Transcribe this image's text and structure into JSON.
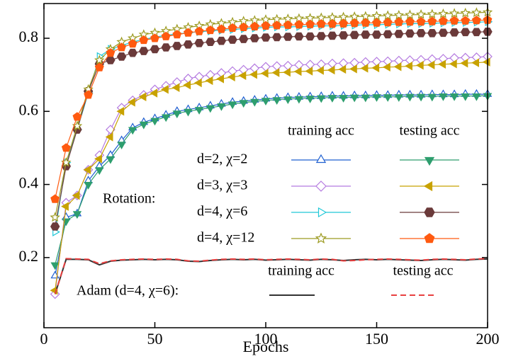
{
  "chart_data": {
    "type": "line",
    "x_label": "Epochs",
    "legend_title": "Rotation:",
    "xlim": [
      0,
      200
    ],
    "xticks": [
      0,
      50,
      100,
      150,
      200
    ],
    "ylim": [
      0.008,
      0.895
    ],
    "yticks": [
      0.2,
      0.4,
      0.6,
      0.8
    ],
    "x": [
      5,
      10,
      15,
      20,
      25,
      30,
      35,
      40,
      45,
      50,
      55,
      60,
      65,
      70,
      75,
      80,
      85,
      90,
      95,
      100,
      105,
      110,
      115,
      120,
      125,
      130,
      135,
      140,
      145,
      150,
      155,
      160,
      165,
      170,
      175,
      180,
      185,
      190,
      195,
      200
    ],
    "series": [
      {
        "name": "d=2, χ=2",
        "kind": "training acc",
        "color": "#1f5fd0",
        "marker": "triangle-up",
        "filled": false,
        "values": [
          0.15,
          0.31,
          0.32,
          0.41,
          0.45,
          0.48,
          0.52,
          0.555,
          0.57,
          0.58,
          0.59,
          0.6,
          0.605,
          0.61,
          0.615,
          0.62,
          0.625,
          0.628,
          0.631,
          0.634,
          0.636,
          0.638,
          0.639,
          0.64,
          0.641,
          0.642,
          0.642,
          0.643,
          0.643,
          0.644,
          0.644,
          0.645,
          0.645,
          0.645,
          0.646,
          0.646,
          0.646,
          0.647,
          0.647,
          0.647
        ]
      },
      {
        "name": "d=2, χ=2",
        "kind": "testing acc",
        "color": "#2e9e6e",
        "marker": "triangle-down",
        "filled": true,
        "values": [
          0.18,
          0.3,
          0.32,
          0.4,
          0.44,
          0.47,
          0.51,
          0.55,
          0.565,
          0.575,
          0.585,
          0.595,
          0.6,
          0.605,
          0.61,
          0.615,
          0.62,
          0.624,
          0.627,
          0.63,
          0.632,
          0.634,
          0.635,
          0.636,
          0.637,
          0.638,
          0.638,
          0.639,
          0.639,
          0.64,
          0.64,
          0.64,
          0.641,
          0.641,
          0.641,
          0.642,
          0.642,
          0.642,
          0.642,
          0.643
        ]
      },
      {
        "name": "d=3, χ=3",
        "kind": "training acc",
        "color": "#b57be0",
        "marker": "diamond",
        "filled": false,
        "values": [
          0.1,
          0.35,
          0.37,
          0.44,
          0.48,
          0.55,
          0.61,
          0.63,
          0.645,
          0.66,
          0.67,
          0.68,
          0.69,
          0.695,
          0.7,
          0.705,
          0.71,
          0.714,
          0.718,
          0.722,
          0.724,
          0.725,
          0.727,
          0.728,
          0.729,
          0.731,
          0.732,
          0.733,
          0.735,
          0.736,
          0.737,
          0.739,
          0.74,
          0.741,
          0.743,
          0.744,
          0.746,
          0.747,
          0.748,
          0.75
        ]
      },
      {
        "name": "d=3, χ=3",
        "kind": "testing acc",
        "color": "#c8a200",
        "marker": "triangle-left",
        "filled": true,
        "values": [
          0.11,
          0.34,
          0.37,
          0.44,
          0.47,
          0.53,
          0.6,
          0.625,
          0.64,
          0.65,
          0.66,
          0.665,
          0.672,
          0.678,
          0.684,
          0.689,
          0.694,
          0.698,
          0.701,
          0.704,
          0.706,
          0.707,
          0.709,
          0.71,
          0.712,
          0.713,
          0.715,
          0.716,
          0.718,
          0.719,
          0.721,
          0.722,
          0.724,
          0.726,
          0.727,
          0.729,
          0.73,
          0.732,
          0.733,
          0.735
        ]
      },
      {
        "name": "d=4, χ=6",
        "kind": "training acc",
        "color": "#22c8d8",
        "marker": "triangle-right",
        "filled": false,
        "values": [
          0.27,
          0.46,
          0.55,
          0.65,
          0.75,
          0.77,
          0.78,
          0.79,
          0.797,
          0.803,
          0.808,
          0.812,
          0.815,
          0.818,
          0.82,
          0.822,
          0.824,
          0.826,
          0.828,
          0.83,
          0.831,
          0.831,
          0.832,
          0.833,
          0.834,
          0.834,
          0.835,
          0.836,
          0.837,
          0.837,
          0.838,
          0.839,
          0.84,
          0.84,
          0.841,
          0.842,
          0.843,
          0.843,
          0.844,
          0.845
        ]
      },
      {
        "name": "d=4, χ=6",
        "kind": "testing acc",
        "color": "#6b3a3a",
        "marker": "hexagon",
        "filled": true,
        "values": [
          0.285,
          0.45,
          0.55,
          0.655,
          0.73,
          0.74,
          0.75,
          0.76,
          0.765,
          0.77,
          0.775,
          0.779,
          0.783,
          0.787,
          0.79,
          0.793,
          0.796,
          0.798,
          0.8,
          0.802,
          0.803,
          0.804,
          0.805,
          0.805,
          0.806,
          0.807,
          0.808,
          0.809,
          0.81,
          0.81,
          0.811,
          0.812,
          0.813,
          0.814,
          0.814,
          0.815,
          0.816,
          0.817,
          0.817,
          0.818
        ]
      },
      {
        "name": "d=4, χ=12",
        "kind": "training acc",
        "color": "#9c9a20",
        "marker": "star",
        "filled": false,
        "values": [
          0.31,
          0.46,
          0.56,
          0.66,
          0.74,
          0.77,
          0.79,
          0.8,
          0.81,
          0.815,
          0.82,
          0.825,
          0.83,
          0.834,
          0.838,
          0.841,
          0.844,
          0.847,
          0.849,
          0.851,
          0.852,
          0.853,
          0.854,
          0.855,
          0.856,
          0.857,
          0.858,
          0.859,
          0.86,
          0.861,
          0.862,
          0.863,
          0.864,
          0.865,
          0.866,
          0.867,
          0.868,
          0.869,
          0.87,
          0.871
        ]
      },
      {
        "name": "d=4, χ=12",
        "kind": "testing acc",
        "color": "#ff5a10",
        "marker": "pentagon",
        "filled": true,
        "values": [
          0.36,
          0.5,
          0.585,
          0.645,
          0.72,
          0.76,
          0.775,
          0.785,
          0.795,
          0.8,
          0.805,
          0.81,
          0.815,
          0.819,
          0.822,
          0.825,
          0.828,
          0.83,
          0.832,
          0.834,
          0.835,
          0.836,
          0.837,
          0.838,
          0.839,
          0.839,
          0.84,
          0.841,
          0.842,
          0.842,
          0.843,
          0.844,
          0.845,
          0.845,
          0.846,
          0.847,
          0.848,
          0.848,
          0.849,
          0.85
        ]
      },
      {
        "name": "Adam (d=4, χ=6):",
        "kind": "training acc",
        "color": "#333333",
        "dashed": false,
        "values": [
          0.1,
          0.195,
          0.195,
          0.194,
          0.18,
          0.19,
          0.193,
          0.194,
          0.195,
          0.194,
          0.195,
          0.194,
          0.19,
          0.189,
          0.192,
          0.194,
          0.195,
          0.194,
          0.195,
          0.193,
          0.194,
          0.195,
          0.194,
          0.193,
          0.195,
          0.194,
          0.192,
          0.194,
          0.195,
          0.194,
          0.195,
          0.194,
          0.193,
          0.192,
          0.194,
          0.195,
          0.194,
          0.193,
          0.195,
          0.196
        ]
      },
      {
        "name": "Adam (d=4, χ=6):",
        "kind": "testing acc",
        "color": "#e84040",
        "dashed": true,
        "values": [
          0.1,
          0.197,
          0.196,
          0.195,
          0.183,
          0.191,
          0.194,
          0.195,
          0.196,
          0.195,
          0.196,
          0.195,
          0.191,
          0.19,
          0.193,
          0.195,
          0.196,
          0.195,
          0.196,
          0.194,
          0.195,
          0.196,
          0.195,
          0.194,
          0.196,
          0.195,
          0.191,
          0.192,
          0.194,
          0.195,
          0.196,
          0.195,
          0.194,
          0.193,
          0.195,
          0.196,
          0.195,
          0.194,
          0.196,
          0.197
        ]
      }
    ]
  }
}
